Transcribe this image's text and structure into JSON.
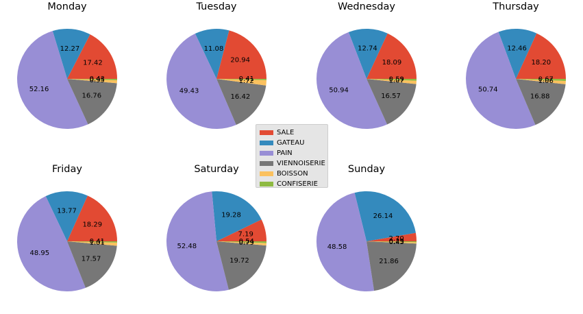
{
  "colors": {
    "SALE": "#E24A33",
    "GATEAU": "#348ABD",
    "PAIN": "#988ED5",
    "VIENNOISERIE": "#777777",
    "BOISSON": "#FBC15E",
    "CONFISERIE": "#8EBA42"
  },
  "legend": {
    "items": [
      {
        "label": "SALE",
        "color": "#E24A33"
      },
      {
        "label": "GATEAU",
        "color": "#348ABD"
      },
      {
        "label": "PAIN",
        "color": "#988ED5"
      },
      {
        "label": "VIENNOISERIE",
        "color": "#777777"
      },
      {
        "label": "BOISSON",
        "color": "#FBC15E"
      },
      {
        "label": "CONFISERIE",
        "color": "#8EBA42"
      }
    ]
  },
  "chart_data": [
    {
      "type": "pie",
      "title": "Monday",
      "categories": [
        "SALE",
        "GATEAU",
        "PAIN",
        "VIENNOISERIE",
        "BOISSON",
        "CONFISERIE"
      ],
      "values": [
        17.42,
        12.27,
        52.16,
        16.76,
        0.95,
        0.43
      ],
      "labels": [
        "17.42",
        "12.27",
        "52.16",
        "16.76",
        "0.95",
        "0.43"
      ]
    },
    {
      "type": "pie",
      "title": "Tuesday",
      "categories": [
        "SALE",
        "GATEAU",
        "PAIN",
        "VIENNOISERIE",
        "BOISSON",
        "CONFISERIE"
      ],
      "values": [
        20.94,
        11.08,
        49.43,
        16.42,
        1.72,
        0.41
      ],
      "labels": [
        "20.94",
        "11.08",
        "49.43",
        "16.42",
        "1.72",
        "0.41"
      ]
    },
    {
      "type": "pie",
      "title": "Wednesday",
      "categories": [
        "SALE",
        "GATEAU",
        "PAIN",
        "VIENNOISERIE",
        "BOISSON",
        "CONFISERIE"
      ],
      "values": [
        18.09,
        12.74,
        50.94,
        16.57,
        1.07,
        0.59
      ],
      "labels": [
        "18.09",
        "12.74",
        "50.94",
        "16.57",
        "1.07",
        "0.59"
      ]
    },
    {
      "type": "pie",
      "title": "Thursday",
      "categories": [
        "SALE",
        "GATEAU",
        "PAIN",
        "VIENNOISERIE",
        "BOISSON",
        "CONFISERIE"
      ],
      "values": [
        18.2,
        12.46,
        50.74,
        16.88,
        1.06,
        0.67
      ],
      "labels": [
        "18.20",
        "12.46",
        "50.74",
        "16.88",
        "1.06",
        "0.67"
      ]
    },
    {
      "type": "pie",
      "title": "Friday",
      "categories": [
        "SALE",
        "GATEAU",
        "PAIN",
        "VIENNOISERIE",
        "BOISSON",
        "CONFISERIE"
      ],
      "values": [
        18.29,
        13.77,
        48.95,
        17.57,
        1.01,
        0.41
      ],
      "labels": [
        "18.29",
        "13.77",
        "48.95",
        "17.57",
        "1.01",
        "0.41"
      ]
    },
    {
      "type": "pie",
      "title": "Saturday",
      "categories": [
        "SALE",
        "GATEAU",
        "PAIN",
        "VIENNOISERIE",
        "BOISSON",
        "CONFISERIE"
      ],
      "values": [
        7.19,
        19.28,
        52.48,
        19.72,
        0.79,
        0.54
      ],
      "labels": [
        "7.19",
        "19.28",
        "52.48",
        "19.72",
        "0.79",
        "0.54"
      ]
    },
    {
      "type": "pie",
      "title": "Sunday",
      "categories": [
        "SALE",
        "GATEAU",
        "PAIN",
        "VIENNOISERIE",
        "BOISSON",
        "CONFISERIE"
      ],
      "values": [
        2.7,
        26.14,
        48.58,
        21.86,
        0.43,
        0.29
      ],
      "labels": [
        "2.70",
        "26.14",
        "48.58",
        "21.86",
        "0.43",
        "0.29"
      ]
    }
  ]
}
